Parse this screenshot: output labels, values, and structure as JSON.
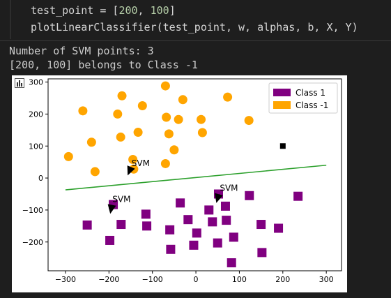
{
  "code": {
    "line1": {
      "var": "test_point",
      "op": " = [",
      "n1": "200",
      "sep": ", ",
      "n2": "100",
      "end": "]"
    },
    "line2": "plotLinearClassifier(test_point, w, alphas, b, X, Y)"
  },
  "output": {
    "line1": "Number of SVM points: 3",
    "line2": "[200, 100] belongs to Class -1"
  },
  "plot_icon": "bar-chart-icon",
  "colors": {
    "class1": "#800080",
    "class_neg1": "#ffa500",
    "boundary": "#2ca02c",
    "test_point": "#000000"
  },
  "chart_data": {
    "type": "scatter",
    "xlim": [
      -340,
      335
    ],
    "ylim": [
      -290,
      310
    ],
    "xticks": [
      -300,
      -200,
      -100,
      0,
      100,
      200,
      300
    ],
    "yticks": [
      -200,
      -100,
      0,
      100,
      200,
      300
    ],
    "legend": {
      "placement": "top-right",
      "entries": [
        "Class 1",
        "Class -1"
      ]
    },
    "series": [
      {
        "name": "Class 1",
        "marker": "square",
        "points": [
          [
            -250,
            -147
          ],
          [
            -198,
            -195
          ],
          [
            -190,
            -83
          ],
          [
            -172,
            -145
          ],
          [
            -115,
            -113
          ],
          [
            -113,
            -150
          ],
          [
            -60,
            -162
          ],
          [
            -58,
            -223
          ],
          [
            -36,
            -78
          ],
          [
            -18,
            -130
          ],
          [
            -5,
            -210
          ],
          [
            2,
            -172
          ],
          [
            30,
            -100
          ],
          [
            38,
            -137
          ],
          [
            52,
            -50
          ],
          [
            50,
            -203
          ],
          [
            68,
            -88
          ],
          [
            70,
            -132
          ],
          [
            82,
            -265
          ],
          [
            87,
            -185
          ],
          [
            123,
            -55
          ],
          [
            150,
            -145
          ],
          [
            152,
            -233
          ],
          [
            190,
            -157
          ],
          [
            235,
            -57
          ]
        ]
      },
      {
        "name": "Class -1",
        "marker": "circle",
        "points": [
          [
            -293,
            67
          ],
          [
            -260,
            210
          ],
          [
            -240,
            112
          ],
          [
            -232,
            20
          ],
          [
            -180,
            200
          ],
          [
            -173,
            128
          ],
          [
            -170,
            257
          ],
          [
            -145,
            58
          ],
          [
            -143,
            28
          ],
          [
            -133,
            143
          ],
          [
            -123,
            226
          ],
          [
            -70,
            288
          ],
          [
            -70,
            45
          ],
          [
            -68,
            190
          ],
          [
            -62,
            138
          ],
          [
            -50,
            88
          ],
          [
            -40,
            183
          ],
          [
            -30,
            245
          ],
          [
            12,
            183
          ],
          [
            15,
            142
          ],
          [
            73,
            253
          ],
          [
            122,
            180
          ]
        ]
      }
    ],
    "test_point": [
      200,
      100
    ],
    "decision_boundary": [
      [
        -300,
        -37
      ],
      [
        300,
        40
      ]
    ],
    "annotations": [
      {
        "text": "SVM",
        "xy": [
          -157,
          8
        ],
        "text_xy": [
          -148,
          37
        ]
      },
      {
        "text": "SVM",
        "xy": [
          -197,
          -112
        ],
        "text_xy": [
          -192,
          -75
        ]
      },
      {
        "text": "SVM",
        "xy": [
          47,
          -78
        ],
        "text_xy": [
          55,
          -40
        ]
      }
    ]
  }
}
